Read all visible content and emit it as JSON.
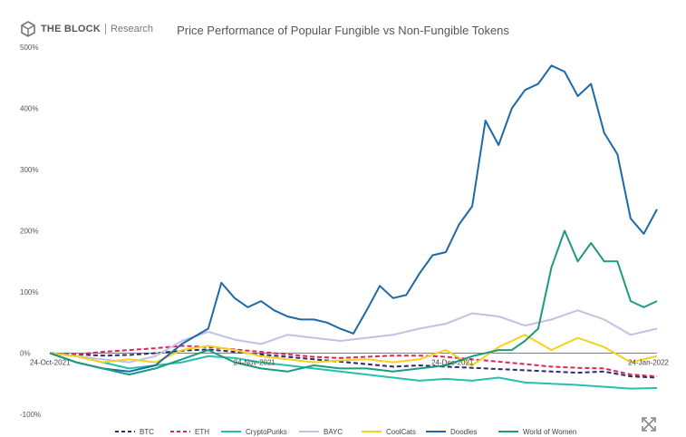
{
  "header": {
    "logo_text": "THE BLOCK",
    "logo_sub": "Research",
    "logo_icon": "cube-logo-icon"
  },
  "controls": {
    "expand_icon": "expand-arrows-icon"
  },
  "chart_data": {
    "type": "line",
    "title": "Price Performance of Popular Fungible vs Non-Fungible Tokens",
    "xlabel": "",
    "ylabel": "",
    "ylim": [
      -100,
      500
    ],
    "yticks": [
      -100,
      0,
      100,
      200,
      300,
      400,
      500
    ],
    "ytick_labels": [
      "-100%",
      "0%",
      "100%",
      "200%",
      "300%",
      "400%",
      "500%"
    ],
    "xticks": [
      {
        "x": 0,
        "label": "24-Oct-2021"
      },
      {
        "x": 31,
        "label": "24-Nov-2021"
      },
      {
        "x": 61,
        "label": "24-Dec-2021"
      },
      {
        "x": 92,
        "label": "24-Jan-2022"
      }
    ],
    "x_start": "24-Oct-2021",
    "x_end": "24-Jan-2022",
    "grid": false,
    "legend_position": "bottom",
    "series": [
      {
        "name": "BTC",
        "color": "#2b2d6e",
        "dash": "5,3",
        "x": [
          0,
          4,
          8,
          12,
          16,
          20,
          24,
          28,
          32,
          36,
          40,
          44,
          48,
          52,
          56,
          60,
          64,
          68,
          72,
          76,
          80,
          84,
          88,
          92
        ],
        "y": [
          0,
          -2,
          -4,
          -3,
          0,
          4,
          6,
          2,
          -2,
          -6,
          -10,
          -14,
          -18,
          -22,
          -20,
          -22,
          -24,
          -26,
          -28,
          -30,
          -32,
          -30,
          -38,
          -40
        ]
      },
      {
        "name": "ETH",
        "color": "#e0245e",
        "dash": "5,3",
        "x": [
          0,
          4,
          8,
          12,
          16,
          20,
          24,
          28,
          32,
          36,
          40,
          44,
          48,
          52,
          56,
          60,
          64,
          68,
          72,
          76,
          80,
          84,
          88,
          92
        ],
        "y": [
          0,
          -2,
          2,
          5,
          8,
          12,
          10,
          6,
          2,
          -2,
          -6,
          -8,
          -6,
          -4,
          -4,
          -6,
          -10,
          -14,
          -18,
          -22,
          -24,
          -25,
          -35,
          -38
        ]
      },
      {
        "name": "CryptoPunks",
        "color": "#27bfae",
        "dash": "",
        "x": [
          0,
          4,
          8,
          12,
          16,
          20,
          24,
          28,
          32,
          36,
          40,
          44,
          48,
          52,
          56,
          60,
          64,
          68,
          72,
          76,
          80,
          84,
          88,
          92
        ],
        "y": [
          0,
          -5,
          -15,
          -25,
          -20,
          -15,
          -5,
          -8,
          -15,
          -20,
          -25,
          -30,
          -35,
          -40,
          -45,
          -42,
          -45,
          -40,
          -48,
          -50,
          -52,
          -55,
          -58,
          -57
        ]
      },
      {
        "name": "BAYC",
        "color": "#c7bfe3",
        "dash": "",
        "x": [
          0,
          4,
          8,
          12,
          16,
          20,
          24,
          28,
          32,
          36,
          40,
          44,
          48,
          52,
          56,
          60,
          64,
          68,
          72,
          76,
          80,
          84,
          88,
          92
        ],
        "y": [
          0,
          -5,
          -10,
          -15,
          -5,
          20,
          35,
          22,
          15,
          30,
          25,
          20,
          25,
          30,
          40,
          48,
          65,
          60,
          45,
          55,
          70,
          55,
          30,
          40
        ]
      },
      {
        "name": "CoolCats",
        "color": "#f4d21f",
        "dash": "",
        "x": [
          0,
          4,
          8,
          12,
          16,
          20,
          24,
          28,
          32,
          36,
          40,
          44,
          48,
          52,
          56,
          60,
          64,
          68,
          72,
          76,
          80,
          84,
          88,
          92
        ],
        "y": [
          0,
          -5,
          -15,
          -10,
          -15,
          5,
          12,
          5,
          -5,
          -10,
          -15,
          -12,
          -10,
          -15,
          -10,
          5,
          -20,
          10,
          30,
          5,
          25,
          10,
          -15,
          -5
        ]
      },
      {
        "name": "Doodles",
        "color": "#1d69a8",
        "dash": "",
        "x": [
          0,
          4,
          8,
          12,
          16,
          20,
          24,
          26,
          28,
          30,
          32,
          34,
          36,
          38,
          40,
          42,
          44,
          46,
          48,
          50,
          52,
          54,
          56,
          58,
          60,
          62,
          64,
          66,
          68,
          70,
          72,
          74,
          76,
          78,
          80,
          82,
          84,
          86,
          88,
          90,
          92
        ],
        "y": [
          0,
          -15,
          -25,
          -30,
          -20,
          15,
          40,
          115,
          90,
          75,
          85,
          70,
          60,
          55,
          55,
          50,
          40,
          32,
          70,
          110,
          90,
          95,
          130,
          160,
          165,
          210,
          240,
          380,
          340,
          400,
          430,
          440,
          470,
          460,
          420,
          440,
          360,
          325,
          220,
          195,
          235
        ]
      },
      {
        "name": "World of Women",
        "color": "#1d9a80",
        "dash": "",
        "x": [
          0,
          4,
          8,
          12,
          16,
          20,
          24,
          28,
          32,
          36,
          40,
          44,
          48,
          52,
          56,
          60,
          64,
          66,
          68,
          70,
          72,
          74,
          76,
          78,
          80,
          82,
          84,
          86,
          88,
          90,
          92
        ],
        "y": [
          0,
          -15,
          -25,
          -35,
          -25,
          -10,
          5,
          -15,
          -25,
          -30,
          -20,
          -25,
          -25,
          -30,
          -25,
          -20,
          -5,
          0,
          5,
          5,
          20,
          40,
          140,
          200,
          150,
          180,
          150,
          150,
          85,
          75,
          85
        ]
      }
    ]
  }
}
